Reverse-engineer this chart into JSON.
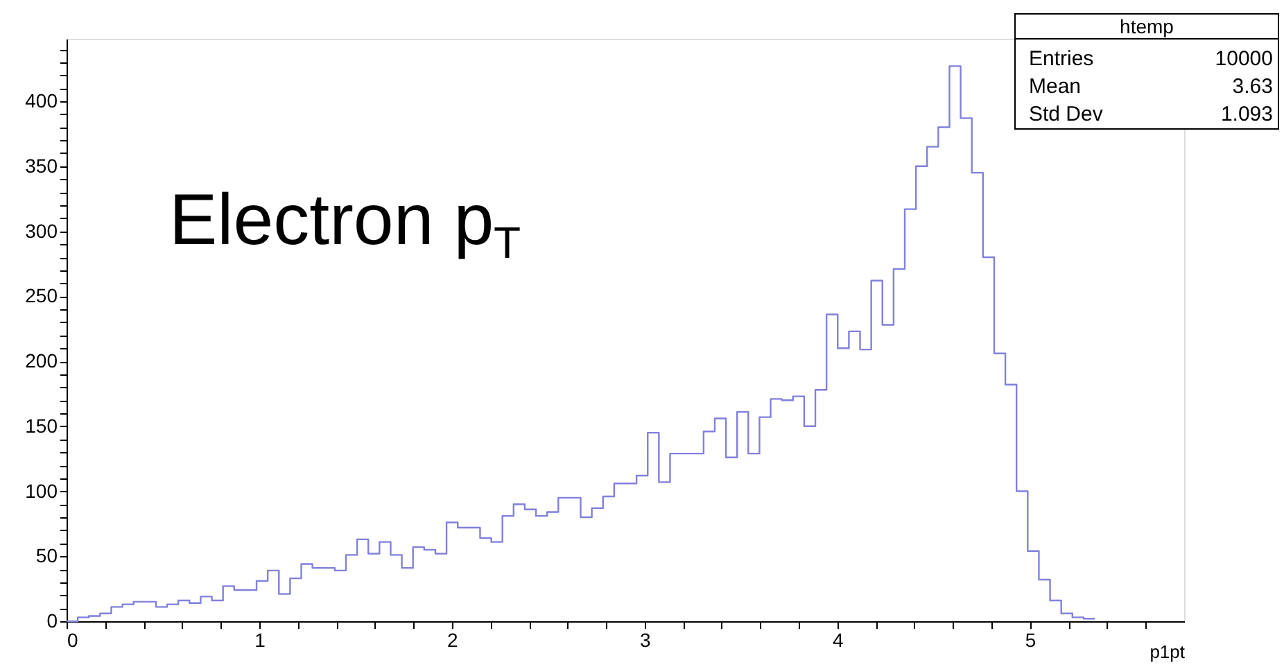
{
  "chart_data": {
    "type": "histogram",
    "bins": [
      0,
      0.058,
      0.116,
      0.174,
      0.232,
      0.29,
      0.348,
      0.406,
      0.464,
      0.522,
      0.58,
      0.638,
      0.696,
      0.754,
      0.812,
      0.87,
      0.928,
      0.986,
      1.044,
      1.102,
      1.16,
      1.218,
      1.276,
      1.334,
      1.392,
      1.45,
      1.508,
      1.566,
      1.624,
      1.682,
      1.74,
      1.798,
      1.856,
      1.914,
      1.972,
      2.03,
      2.088,
      2.146,
      2.204,
      2.262,
      2.32,
      2.378,
      2.436,
      2.494,
      2.552,
      2.61,
      2.668,
      2.726,
      2.784,
      2.842,
      2.9,
      2.958,
      3.016,
      3.074,
      3.132,
      3.19,
      3.248,
      3.306,
      3.364,
      3.422,
      3.48,
      3.538,
      3.596,
      3.654,
      3.712,
      3.77,
      3.828,
      3.886,
      3.944,
      4.002,
      4.06,
      4.118,
      4.176,
      4.234,
      4.292,
      4.35,
      4.408,
      4.466,
      4.524,
      4.582,
      4.64,
      4.698,
      4.756,
      4.814,
      4.872,
      4.93,
      4.988,
      5.046,
      5.104,
      5.162,
      5.22,
      5.278,
      5.336
    ],
    "values": [
      0,
      3,
      4,
      6,
      11,
      13,
      15,
      15,
      11,
      13,
      16,
      14,
      19,
      16,
      27,
      24,
      24,
      31,
      39,
      21,
      33,
      44,
      41,
      41,
      39,
      51,
      63,
      52,
      61,
      51,
      41,
      57,
      55,
      52,
      76,
      72,
      72,
      64,
      61,
      81,
      90,
      86,
      81,
      84,
      95,
      95,
      80,
      87,
      96,
      106,
      106,
      112,
      145,
      107,
      129,
      129,
      129,
      146,
      156,
      126,
      161,
      129,
      157,
      171,
      170,
      173,
      150,
      178,
      236,
      210,
      223,
      209,
      262,
      228,
      271,
      317,
      350,
      365,
      380,
      427,
      387,
      345,
      280,
      206,
      182,
      100,
      54,
      32,
      16,
      6,
      3,
      2
    ],
    "color": "#8080dd",
    "xlabel": "p1pt",
    "xlim": [
      0,
      5.8
    ],
    "xticks": [
      0,
      {
        "value": 0.2,
        "label": null
      },
      {
        "value": 0.4,
        "label": null
      },
      {
        "value": 0.6,
        "label": null
      },
      {
        "value": 0.8,
        "label": null
      },
      1,
      {
        "value": 1.2,
        "label": null
      },
      {
        "value": 1.4,
        "label": null
      },
      {
        "value": 1.6,
        "label": null
      },
      {
        "value": 1.8,
        "label": null
      },
      2,
      {
        "value": 2.2,
        "label": null
      },
      {
        "value": 2.4,
        "label": null
      },
      {
        "value": 2.6,
        "label": null
      },
      {
        "value": 2.8,
        "label": null
      },
      3,
      {
        "value": 3.2,
        "label": null
      },
      {
        "value": 3.4,
        "label": null
      },
      {
        "value": 3.6,
        "label": null
      },
      {
        "value": 3.8,
        "label": null
      },
      4,
      {
        "value": 4.2,
        "label": null
      },
      {
        "value": 4.4,
        "label": null
      },
      {
        "value": 4.6,
        "label": null
      },
      {
        "value": 4.8,
        "label": null
      },
      5,
      {
        "value": 5.2,
        "label": null
      },
      {
        "value": 5.4,
        "label": null
      },
      {
        "value": 5.6,
        "label": null
      }
    ],
    "ylim": [
      0,
      448
    ],
    "yticks": [
      0,
      {
        "value": 10,
        "label": null
      },
      {
        "value": 20,
        "label": null
      },
      {
        "value": 30,
        "label": null
      },
      {
        "value": 40,
        "label": null
      },
      50,
      {
        "value": 60,
        "label": null
      },
      {
        "value": 70,
        "label": null
      },
      {
        "value": 80,
        "label": null
      },
      {
        "value": 90,
        "label": null
      },
      100,
      {
        "value": 110,
        "label": null
      },
      {
        "value": 120,
        "label": null
      },
      {
        "value": 130,
        "label": null
      },
      {
        "value": 140,
        "label": null
      },
      150,
      {
        "value": 160,
        "label": null
      },
      {
        "value": 170,
        "label": null
      },
      {
        "value": 180,
        "label": null
      },
      {
        "value": 190,
        "label": null
      },
      200,
      {
        "value": 210,
        "label": null
      },
      {
        "value": 220,
        "label": null
      },
      {
        "value": 230,
        "label": null
      },
      {
        "value": 240,
        "label": null
      },
      250,
      {
        "value": 260,
        "label": null
      },
      {
        "value": 270,
        "label": null
      },
      {
        "value": 280,
        "label": null
      },
      {
        "value": 290,
        "label": null
      },
      300,
      {
        "value": 310,
        "label": null
      },
      {
        "value": 320,
        "label": null
      },
      {
        "value": 330,
        "label": null
      },
      {
        "value": 340,
        "label": null
      },
      350,
      {
        "value": 360,
        "label": null
      },
      {
        "value": 370,
        "label": null
      },
      {
        "value": 380,
        "label": null
      },
      {
        "value": 390,
        "label": null
      },
      400,
      {
        "value": 410,
        "label": null
      },
      {
        "value": 420,
        "label": null
      },
      {
        "value": 430,
        "label": null
      },
      {
        "value": 440,
        "label": null
      }
    ],
    "annotations": [
      "Electron p$_{T}$",
      "htemp",
      "Entries",
      "10000",
      "Mean",
      "3.63",
      "Std Dev",
      "1.093"
    ],
    "grid": false
  }
}
